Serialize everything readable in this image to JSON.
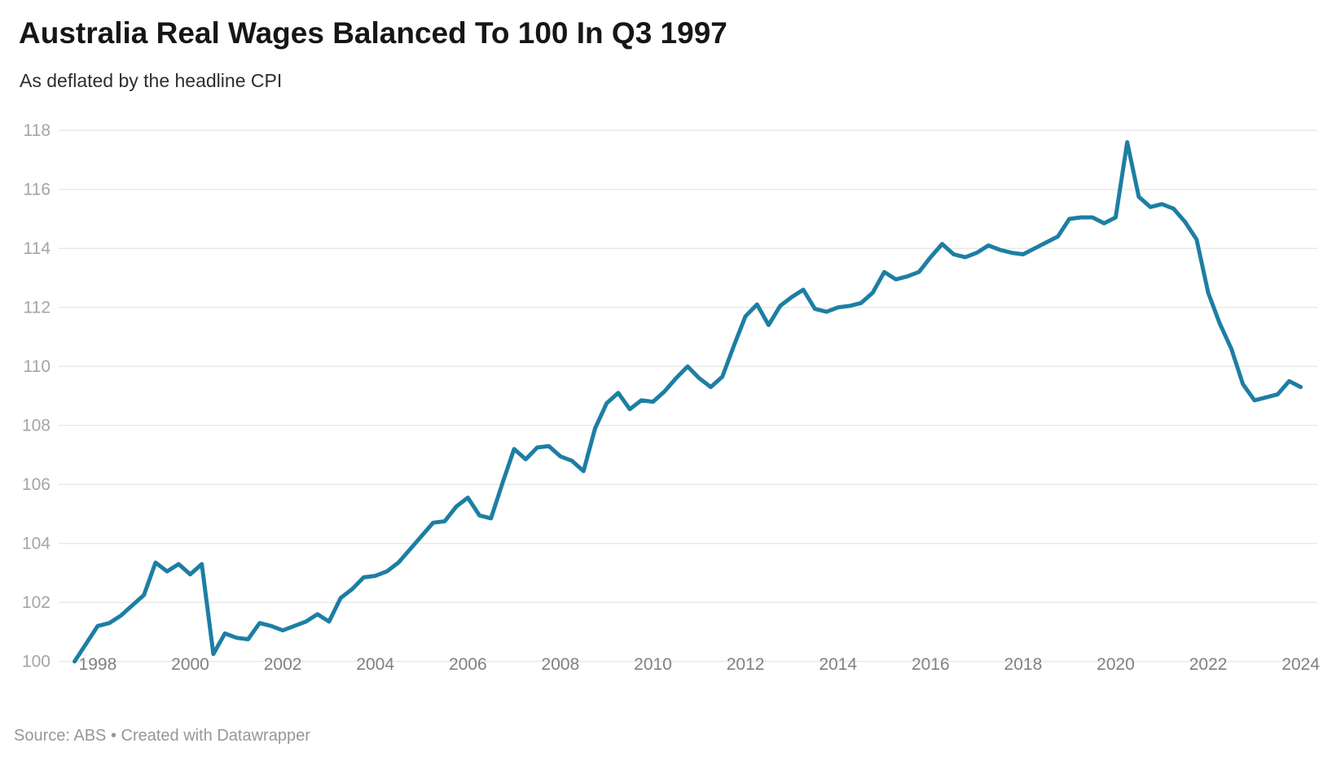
{
  "header": {
    "title": "Australia Real Wages Balanced To 100 In Q3 1997",
    "subtitle": "As deflated by the headline CPI"
  },
  "footer": {
    "source": "Source: ABS • Created with Datawrapper"
  },
  "chart_data": {
    "type": "line",
    "title": "Australia Real Wages Balanced To 100 In Q3 1997",
    "subtitle": "As deflated by the headline CPI",
    "series_name": "Real wage index (Q3 1997 = 100)",
    "frequency": "quarterly",
    "start_year": 1997,
    "start_quarter": 3,
    "end_period": "2024-Q1",
    "line_color": "#1d7ea3",
    "grid": true,
    "legend": "none",
    "ylim": [
      100,
      118
    ],
    "y_ticks": [
      100,
      102,
      104,
      106,
      108,
      110,
      112,
      114,
      116,
      118
    ],
    "x_tick_years": [
      1998,
      2000,
      2002,
      2004,
      2006,
      2008,
      2010,
      2012,
      2014,
      2016,
      2018,
      2020,
      2022,
      2024
    ],
    "values": [
      100,
      100.6,
      101.2,
      101.3,
      101.55,
      101.9,
      102.25,
      103.35,
      103.05,
      103.3,
      102.95,
      103.3,
      100.25,
      100.95,
      100.8,
      100.75,
      101.3,
      101.2,
      101.05,
      101.2,
      101.35,
      101.6,
      101.35,
      102.15,
      102.45,
      102.85,
      102.9,
      103.05,
      103.35,
      103.8,
      104.25,
      104.7,
      104.75,
      105.25,
      105.55,
      104.95,
      104.85,
      106.05,
      107.2,
      106.85,
      107.25,
      107.3,
      106.95,
      106.8,
      106.45,
      107.9,
      108.75,
      109.1,
      108.55,
      108.85,
      108.8,
      109.15,
      109.6,
      110,
      109.6,
      109.3,
      109.65,
      110.7,
      111.7,
      112.1,
      111.4,
      112.05,
      112.35,
      112.6,
      111.95,
      111.85,
      112,
      112.05,
      112.15,
      112.5,
      113.2,
      112.95,
      113.05,
      113.2,
      113.7,
      114.15,
      113.8,
      113.7,
      113.85,
      114.1,
      113.95,
      113.85,
      113.8,
      114,
      114.2,
      114.4,
      115,
      115.05,
      115.05,
      114.85,
      115.05,
      117.6,
      115.75,
      115.4,
      115.5,
      115.35,
      114.9,
      114.3,
      112.5,
      111.45,
      110.6,
      109.4,
      108.85,
      108.95,
      109.05,
      109.5,
      109.3
    ]
  }
}
